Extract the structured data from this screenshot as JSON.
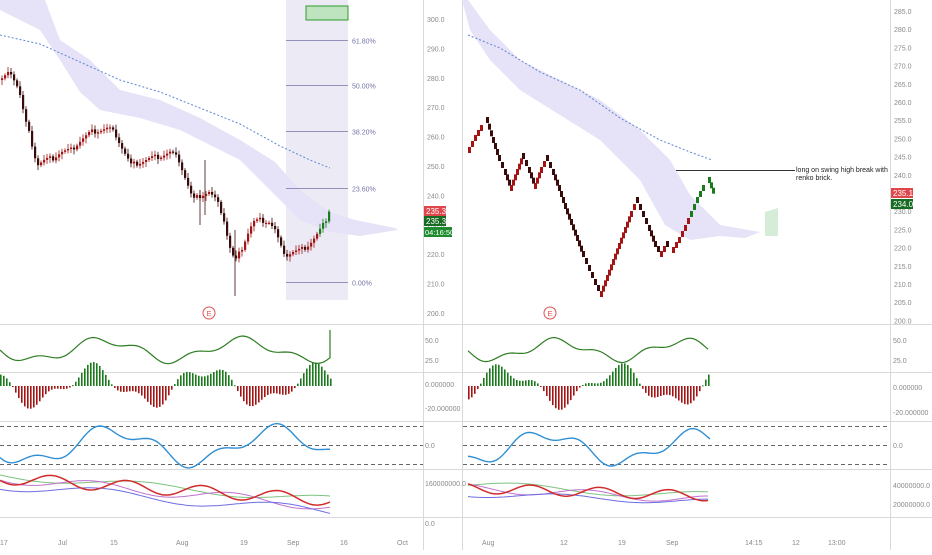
{
  "colors": {
    "bull": "#1b7a1b",
    "bear": "#a31515",
    "candle_dark": "#3a0b0b",
    "cloud": "#e6e2f7",
    "ma": "#5f84d6",
    "fib_zone": "#ecebf5",
    "fib_line": "#7474a8",
    "fib_top_fill": "#9ee09a",
    "cmo": "#2e7d23",
    "stoch": "#2f8fd4",
    "red_line": "#d22b2b",
    "violet_line": "#c070d0",
    "green_line": "#7fc27f",
    "blue_line": "#6c6ce0",
    "axis_text": "#8a8a8a",
    "badge_red": "#e0474c",
    "badge_green": "#1e8c2e",
    "badge_dark_green": "#176b23"
  },
  "left_chart": {
    "price_axis": [
      "300.0",
      "290.0",
      "280.0",
      "270.0",
      "260.0",
      "250.0",
      "240.0",
      "230.0",
      "220.0",
      "210.0",
      "200.0"
    ],
    "fib_levels": [
      {
        "label": "61.80%",
        "price": 293.0
      },
      {
        "label": "50.00%",
        "price": 277.5
      },
      {
        "label": "38.20%",
        "price": 262.0
      },
      {
        "label": "23.60%",
        "price": 242.5
      },
      {
        "label": "0.00%",
        "price": 210.5
      }
    ],
    "badges": {
      "price_red": "235.3",
      "price_green": "235.3",
      "countdown": "04:16:50"
    },
    "event_marker": "E",
    "time_axis": [
      "17",
      "Jul",
      "15",
      "Aug",
      "19",
      "Sep",
      "16",
      "Oct"
    ]
  },
  "right_chart": {
    "price_axis": [
      "285.0",
      "280.0",
      "275.0",
      "270.0",
      "265.0",
      "260.0",
      "255.0",
      "250.0",
      "245.0",
      "240.0",
      "235.0",
      "230.0",
      "225.0",
      "220.0",
      "215.0",
      "210.0",
      "205.0",
      "200.0"
    ],
    "badges": {
      "price_red": "235.1",
      "price_green": "234.0"
    },
    "annotation": "long on swing high break with renko brick.",
    "event_marker": "E",
    "time_axis": [
      "Aug",
      "12",
      "19",
      "Sep",
      "14:15",
      "12",
      "13:00"
    ]
  },
  "panes": {
    "cmo_axis": [
      "50.0",
      "25.0"
    ],
    "macd_axis": [
      "0.000000",
      "-20.000000"
    ],
    "stoch_axis": [
      "0.0"
    ],
    "volume_left_axis": [
      "160000000.0",
      "0.0"
    ],
    "volume_right_axis": [
      "40000000.0",
      "20000000.0"
    ]
  }
}
